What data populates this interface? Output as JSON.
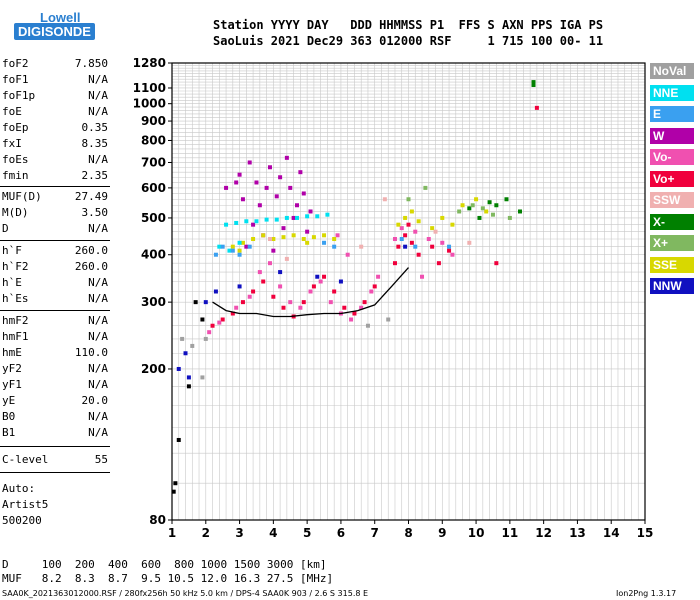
{
  "logo": {
    "line1": "Lowell",
    "line2": "DIGISONDE"
  },
  "header": {
    "line1": "Station YYYY DAY   DDD HHMMSS P1  FFS S AXN PPS IGA PS",
    "line2": "SaoLuis 2021 Dec29 363 012000 RSF     1 715 100 00- 11"
  },
  "params": [
    {
      "k": "foF2",
      "v": "7.850"
    },
    {
      "k": "foF1",
      "v": "N/A"
    },
    {
      "k": "foF1p",
      "v": "N/A"
    },
    {
      "k": "foE",
      "v": "N/A"
    },
    {
      "k": "foEp",
      "v": "0.35"
    },
    {
      "k": "fxI",
      "v": "8.35"
    },
    {
      "k": "foEs",
      "v": "N/A"
    },
    {
      "k": "fmin",
      "v": "2.35"
    },
    {
      "k": "MUF(D)",
      "v": "27.49"
    },
    {
      "k": "M(D)",
      "v": "3.50"
    },
    {
      "k": "D",
      "v": "N/A"
    },
    {
      "k": "h`F",
      "v": "260.0"
    },
    {
      "k": "h`F2",
      "v": "260.0"
    },
    {
      "k": "h`E",
      "v": "N/A"
    },
    {
      "k": "h`Es",
      "v": "N/A"
    },
    {
      "k": "hmF2",
      "v": "N/A"
    },
    {
      "k": "hmF1",
      "v": "N/A"
    },
    {
      "k": "hmE",
      "v": "110.0"
    },
    {
      "k": "yF2",
      "v": "N/A"
    },
    {
      "k": "yF1",
      "v": "N/A"
    },
    {
      "k": "yE",
      "v": "20.0"
    },
    {
      "k": "B0",
      "v": "N/A"
    },
    {
      "k": "B1",
      "v": "N/A"
    },
    {
      "k": "C-level",
      "v": "55"
    }
  ],
  "auto": {
    "l1": "Auto:",
    "l2": "Artist5",
    "l3": "500200"
  },
  "legend": [
    {
      "label": "NoVal",
      "color": "#a0a0a0"
    },
    {
      "label": "NNE",
      "color": "#00e0f0"
    },
    {
      "label": "E",
      "color": "#3aa0f0"
    },
    {
      "label": "W",
      "color": "#b000a8"
    },
    {
      "label": "Vo-",
      "color": "#f050b0"
    },
    {
      "label": "Vo+",
      "color": "#f0003c"
    },
    {
      "label": "SSW",
      "color": "#f0b0b0"
    },
    {
      "label": "X-",
      "color": "#008000"
    },
    {
      "label": "X+",
      "color": "#80b860"
    },
    {
      "label": "SSE",
      "color": "#d8d800"
    },
    {
      "label": "NNW",
      "color": "#1010c0"
    }
  ],
  "footer": {
    "d_row": "D     100  200  400  600  800 1000 1500 3000 [km]",
    "muf_row": "MUF   8.2  8.3  8.7  9.5 10.5 12.0 16.3 27.5 [MHz]",
    "file": "SAA0K_2021363012000.RSF / 280fx256h 50 kHz 5.0 km / DPS-4 SAA0K 903 / 2.6 S 315.8 E",
    "version": "Ion2Png 1.3.17"
  },
  "chart_data": {
    "type": "scatter",
    "xlabel": "",
    "ylabel": "",
    "xlim": [
      1,
      15
    ],
    "ylim": [
      80,
      1280
    ],
    "xticks": [
      1,
      2,
      3,
      4,
      5,
      6,
      7,
      8,
      9,
      10,
      11,
      12,
      13,
      14,
      15
    ],
    "yticks": [
      80,
      200,
      300,
      400,
      500,
      600,
      700,
      800,
      900,
      1000,
      1100,
      1280
    ],
    "y_scale": "log",
    "grid": true,
    "series": [
      {
        "color": "#f0003c",
        "points": [
          [
            2.2,
            260
          ],
          [
            2.5,
            270
          ],
          [
            2.8,
            280
          ],
          [
            3.1,
            300
          ],
          [
            3.4,
            320
          ],
          [
            3.7,
            340
          ],
          [
            4.0,
            310
          ],
          [
            4.3,
            290
          ],
          [
            4.6,
            275
          ],
          [
            4.9,
            300
          ],
          [
            5.2,
            330
          ],
          [
            5.5,
            350
          ],
          [
            5.8,
            320
          ],
          [
            6.1,
            290
          ],
          [
            6.4,
            280
          ],
          [
            6.7,
            300
          ],
          [
            7.0,
            330
          ],
          [
            7.7,
            420
          ],
          [
            7.9,
            450
          ],
          [
            8.1,
            430
          ],
          [
            8.3,
            400
          ],
          [
            8.7,
            420
          ],
          [
            8.9,
            380
          ],
          [
            9.2,
            410
          ],
          [
            10.6,
            380
          ],
          [
            11.8,
            975
          ],
          [
            8.0,
            480
          ],
          [
            7.6,
            380
          ]
        ]
      },
      {
        "color": "#f050b0",
        "points": [
          [
            2.1,
            250
          ],
          [
            2.4,
            265
          ],
          [
            2.9,
            290
          ],
          [
            3.3,
            310
          ],
          [
            3.6,
            360
          ],
          [
            3.9,
            380
          ],
          [
            4.2,
            330
          ],
          [
            4.5,
            300
          ],
          [
            4.8,
            290
          ],
          [
            5.1,
            320
          ],
          [
            5.4,
            340
          ],
          [
            5.7,
            300
          ],
          [
            6.0,
            280
          ],
          [
            6.3,
            270
          ],
          [
            6.6,
            290
          ],
          [
            6.9,
            320
          ],
          [
            7.6,
            440
          ],
          [
            7.8,
            470
          ],
          [
            8.2,
            460
          ],
          [
            8.6,
            440
          ],
          [
            9.0,
            430
          ],
          [
            9.3,
            400
          ],
          [
            7.1,
            350
          ],
          [
            6.2,
            400
          ],
          [
            5.9,
            450
          ],
          [
            8.4,
            350
          ]
        ]
      },
      {
        "color": "#b000a8",
        "points": [
          [
            3.0,
            650
          ],
          [
            3.1,
            560
          ],
          [
            3.3,
            700
          ],
          [
            3.5,
            620
          ],
          [
            3.6,
            540
          ],
          [
            3.8,
            600
          ],
          [
            3.9,
            680
          ],
          [
            4.1,
            570
          ],
          [
            4.2,
            640
          ],
          [
            4.4,
            720
          ],
          [
            4.5,
            600
          ],
          [
            4.7,
            540
          ],
          [
            4.8,
            660
          ],
          [
            4.9,
            580
          ],
          [
            5.1,
            520
          ],
          [
            2.6,
            600
          ],
          [
            2.9,
            620
          ],
          [
            3.4,
            480
          ],
          [
            3.7,
            450
          ],
          [
            4.3,
            470
          ],
          [
            4.6,
            500
          ],
          [
            5.0,
            460
          ],
          [
            3.2,
            420
          ],
          [
            4.0,
            410
          ]
        ]
      },
      {
        "color": "#d8d800",
        "points": [
          [
            2.8,
            420
          ],
          [
            3.1,
            430
          ],
          [
            3.4,
            440
          ],
          [
            3.7,
            450
          ],
          [
            4.0,
            440
          ],
          [
            4.3,
            445
          ],
          [
            4.6,
            450
          ],
          [
            4.9,
            440
          ],
          [
            5.2,
            445
          ],
          [
            5.5,
            450
          ],
          [
            5.8,
            440
          ],
          [
            7.7,
            480
          ],
          [
            7.9,
            500
          ],
          [
            8.1,
            520
          ],
          [
            8.3,
            490
          ],
          [
            8.7,
            470
          ],
          [
            9.0,
            500
          ],
          [
            9.3,
            480
          ],
          [
            9.6,
            540
          ],
          [
            10.0,
            560
          ],
          [
            10.3,
            520
          ],
          [
            3.0,
            410
          ],
          [
            5.0,
            430
          ]
        ]
      },
      {
        "color": "#00e0f0",
        "points": [
          [
            2.6,
            480
          ],
          [
            2.9,
            485
          ],
          [
            3.2,
            490
          ],
          [
            3.5,
            490
          ],
          [
            3.8,
            495
          ],
          [
            4.1,
            495
          ],
          [
            4.4,
            500
          ],
          [
            4.7,
            500
          ],
          [
            5.0,
            505
          ],
          [
            5.3,
            505
          ],
          [
            5.6,
            510
          ],
          [
            2.4,
            420
          ],
          [
            2.7,
            410
          ],
          [
            3.0,
            430
          ]
        ]
      },
      {
        "color": "#3aa0f0",
        "points": [
          [
            2.5,
            420
          ],
          [
            2.8,
            410
          ],
          [
            3.0,
            400
          ],
          [
            3.3,
            420
          ],
          [
            5.5,
            430
          ],
          [
            5.8,
            420
          ],
          [
            7.8,
            440
          ],
          [
            8.2,
            420
          ],
          [
            9.2,
            420
          ],
          [
            2.3,
            400
          ]
        ]
      },
      {
        "color": "#008000",
        "points": [
          [
            10.4,
            550
          ],
          [
            10.6,
            540
          ],
          [
            10.9,
            560
          ],
          [
            11.3,
            520
          ],
          [
            11.7,
            1140
          ],
          [
            11.7,
            1120
          ],
          [
            10.1,
            500
          ],
          [
            9.8,
            530
          ]
        ]
      },
      {
        "color": "#80b860",
        "points": [
          [
            9.5,
            520
          ],
          [
            9.9,
            540
          ],
          [
            10.2,
            530
          ],
          [
            10.5,
            510
          ],
          [
            11.0,
            500
          ],
          [
            8.0,
            560
          ],
          [
            8.5,
            600
          ]
        ]
      },
      {
        "color": "#1010c0",
        "points": [
          [
            1.2,
            200
          ],
          [
            1.5,
            190
          ],
          [
            1.4,
            220
          ],
          [
            2.0,
            300
          ],
          [
            2.3,
            320
          ],
          [
            3.0,
            330
          ],
          [
            4.2,
            360
          ],
          [
            5.3,
            350
          ],
          [
            6.0,
            340
          ],
          [
            7.9,
            420
          ]
        ]
      },
      {
        "color": "#f0b0b0",
        "points": [
          [
            3.9,
            440
          ],
          [
            4.4,
            390
          ],
          [
            6.6,
            420
          ],
          [
            8.8,
            460
          ],
          [
            9.8,
            430
          ],
          [
            7.3,
            560
          ]
        ]
      },
      {
        "color": "#a0a0a0",
        "points": [
          [
            1.3,
            240
          ],
          [
            1.6,
            230
          ],
          [
            2.0,
            240
          ],
          [
            6.8,
            260
          ],
          [
            7.4,
            270
          ],
          [
            1.9,
            190
          ]
        ]
      },
      {
        "color": "#000000",
        "points": [
          [
            1.1,
            100
          ],
          [
            1.05,
            95
          ],
          [
            1.2,
            130
          ],
          [
            1.7,
            300
          ],
          [
            1.9,
            270
          ],
          [
            1.5,
            180
          ]
        ]
      }
    ],
    "trace": [
      [
        2.2,
        300
      ],
      [
        2.6,
        285
      ],
      [
        3.0,
        280
      ],
      [
        3.5,
        280
      ],
      [
        4.0,
        275
      ],
      [
        4.5,
        275
      ],
      [
        5.0,
        278
      ],
      [
        5.5,
        280
      ],
      [
        6.0,
        280
      ],
      [
        6.5,
        285
      ],
      [
        7.0,
        295
      ],
      [
        7.5,
        330
      ],
      [
        8.0,
        370
      ]
    ]
  }
}
